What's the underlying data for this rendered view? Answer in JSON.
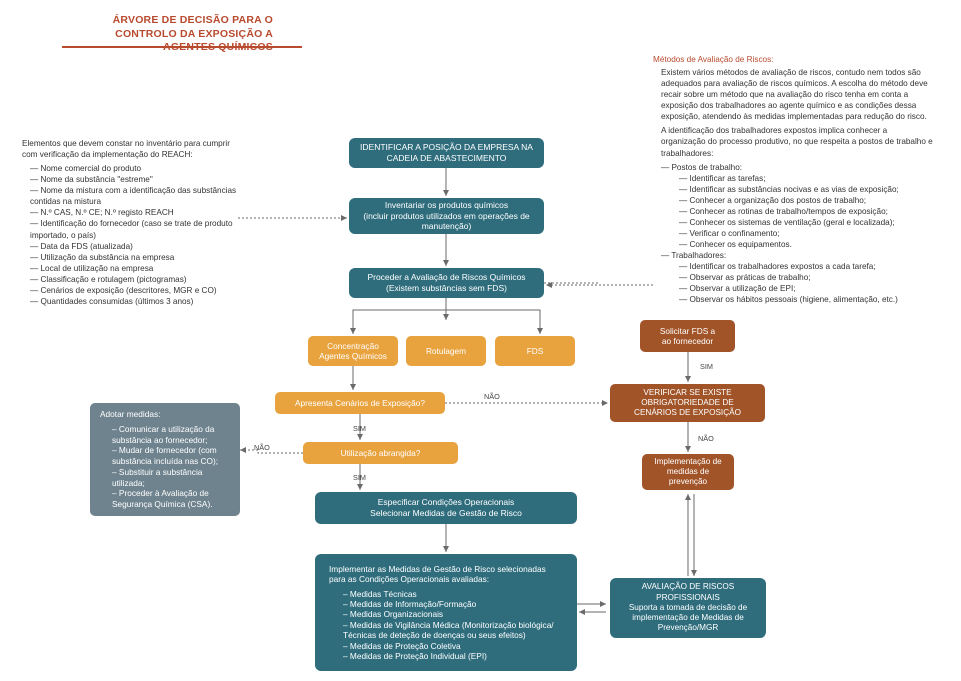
{
  "title": "ÁRVORE DE DECISÃO PARA O CONTROLO DA EXPOSIÇÃO A AGENTES QUÍMICOS",
  "colors": {
    "teal": "#2f6d7d",
    "orange": "#e8a33f",
    "brown": "#a15428",
    "slate": "#6e838e",
    "accent": "#b84a2e",
    "arrow": "#6a6a6a",
    "bg": "#ffffff"
  },
  "labels": {
    "sim": "SIM",
    "nao": "NÃO"
  },
  "leftbox": {
    "lead": "Elementos que devem constar no inventário para cumprir com verificação da implementação do REACH:",
    "items": [
      "Nome comercial do produto",
      "Nome da substância \"estreme\"",
      "Nome da mistura com a identificação das substâncias contidas na mistura",
      "N.º CAS, N.º CE; N.º registo REACH",
      "Identificação do fornecedor (caso se trate de produto importado, o país)",
      "Data da FDS (atualizada)",
      "Utilização da substância na empresa",
      "Local de utilização na empresa",
      "Classificação e rotulagem (pictogramas)",
      "Cenários de exposição (descritores, MGR e CO)",
      "Quantidades consumidas (últimos 3 anos)"
    ]
  },
  "rightbox": {
    "subhead": "Métodos de Avaliação de Riscos:",
    "p1": "Existem vários métodos de avaliação de riscos, contudo nem todos são adequados para avaliação de riscos químicos. A escolha do método deve recair sobre um método que na avaliação do risco tenha em conta a exposição dos trabalhadores ao agente químico e as condições dessa exposição, atendendo às medidas implementadas para redução do risco.",
    "p2": "A identificação dos trabalhadores expostos implica conhecer a organização do processo produtivo, no que respeita a postos de trabalho e trabalhadores:",
    "groups": [
      {
        "label": "Postos de trabalho:",
        "items": [
          "Identificar as tarefas;",
          "Identificar as substâncias nocivas e as vias de exposição;",
          "Conhecer a organização dos postos de trabalho;",
          "Conhecer as rotinas de trabalho/tempos de exposição;",
          "Conhecer os sistemas de ventilação (geral e localizada);",
          "Verificar o confinamento;",
          "Conhecer os equipamentos."
        ]
      },
      {
        "label": "Trabalhadores:",
        "items": [
          "Identificar os trabalhadores expostos a cada tarefa;",
          "Observar as práticas de trabalho;",
          "Observar a utilização de EPI;",
          "Observar os hábitos pessoais (higiene, alimentação, etc.)"
        ]
      }
    ]
  },
  "nodes": {
    "n1": "IDENTIFICAR A POSIÇÃO DA EMPRESA NA CADEIA DE ABASTECIMENTO",
    "n2": "Inventariar os produtos químicos\n(incluir produtos utilizados em operações de manutenção)",
    "n3": "Proceder a Avaliação de Riscos Químicos\n(Existem substâncias sem FDS)",
    "n4": "Concentração\nAgentes Químicos",
    "n5": "Rotulagem",
    "n6": "FDS",
    "n7": "Apresenta Cenários de Exposição?",
    "n8": "Utilização abrangida?",
    "n9": "Especificar Condições Operacionais\nSelecionar Medidas de Gestão de Risco",
    "n10_lead": "Implementar as Medidas de Gestão de Risco selecionadas para as Condições Operacionais avaliadas:",
    "n10_items": [
      "Medidas Técnicas",
      "Medidas de Informação/Formação",
      "Medidas Organizacionais",
      "Medidas de Vigilância Médica (Monitorização biológica/ Técnicas de deteção de doenças ou seus efeitos)",
      "Medidas de Proteção Coletiva",
      "Medidas de Proteção Individual (EPI)"
    ],
    "n11": "Solicitar FDS a\nao fornecedor",
    "n12": "VERIFICAR SE EXISTE OBRIGATORIEDADE DE CENÁRIOS DE EXPOSIÇÃO",
    "n13": "Implementação de medidas de prevenção",
    "n14": "AVALIAÇÃO DE RISCOS PROFISSIONAIS\nSuporta a tomada de decisão de implementação de Medidas de Prevenção/MGR",
    "adopt_head": "Adotar medidas:",
    "adopt_items": [
      "Comunicar a utilização da substância ao fornecedor;",
      "Mudar de fornecedor (com substância incluída nas CO);",
      "Substituir a substância utilizada;",
      "Proceder à Avaliação de Segurança Química (CSA)."
    ]
  }
}
